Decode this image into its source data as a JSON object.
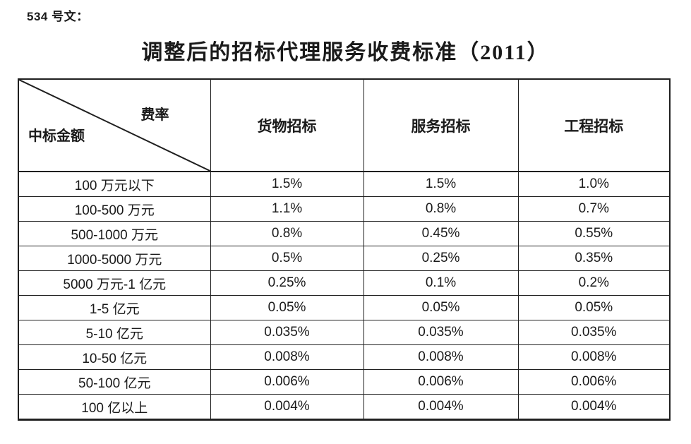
{
  "page": {
    "doc_label": "534 号文：",
    "title": "调整后的招标代理服务收费标准（2011）"
  },
  "table": {
    "corner": {
      "top_right": "费率",
      "bottom_left": "中标金额"
    },
    "columns": [
      "货物招标",
      "服务招标",
      "工程招标"
    ],
    "rows": [
      {
        "label": "100 万元以下",
        "values": [
          "1.5%",
          "1.5%",
          "1.0%"
        ]
      },
      {
        "label": "100-500 万元",
        "values": [
          "1.1%",
          "0.8%",
          "0.7%"
        ]
      },
      {
        "label": "500-1000 万元",
        "values": [
          "0.8%",
          "0.45%",
          "0.55%"
        ]
      },
      {
        "label": "1000-5000 万元",
        "values": [
          "0.5%",
          "0.25%",
          "0.35%"
        ]
      },
      {
        "label": "5000 万元-1 亿元",
        "values": [
          "0.25%",
          "0.1%",
          "0.2%"
        ]
      },
      {
        "label": "1-5 亿元",
        "values": [
          "0.05%",
          "0.05%",
          "0.05%"
        ]
      },
      {
        "label": "5-10 亿元",
        "values": [
          "0.035%",
          "0.035%",
          "0.035%"
        ]
      },
      {
        "label": "10-50 亿元",
        "values": [
          "0.008%",
          "0.008%",
          "0.008%"
        ]
      },
      {
        "label": "50-100 亿元",
        "values": [
          "0.006%",
          "0.006%",
          "0.006%"
        ]
      },
      {
        "label": "100 亿以上",
        "values": [
          "0.004%",
          "0.004%",
          "0.004%"
        ]
      }
    ],
    "colors": {
      "border": "#1f1f1f",
      "text": "#1a1a1a",
      "background": "#ffffff"
    }
  }
}
